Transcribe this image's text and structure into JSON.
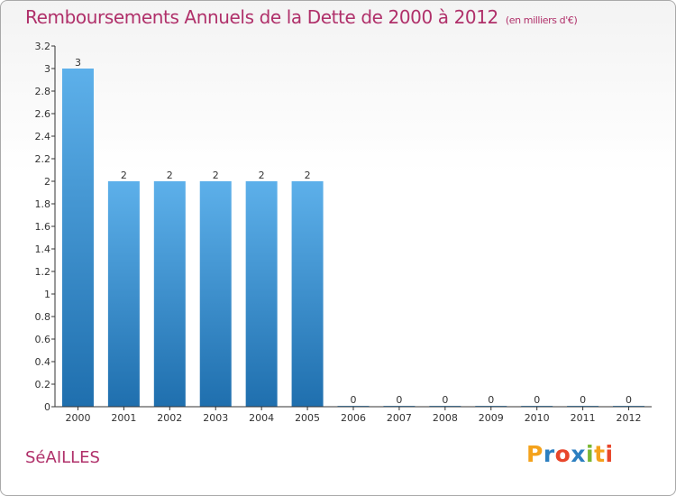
{
  "title": "Remboursements Annuels de la Dette de 2000 à 2012",
  "subtitle": "(en milliers d'€)",
  "commune": "SéAILLES",
  "logo": {
    "letters": [
      "P",
      "r",
      "o",
      "x",
      "i",
      "t",
      "i"
    ],
    "colors": [
      "#f4a21b",
      "#2c7fc0",
      "#e8462b",
      "#2c7fc0",
      "#7ab733",
      "#f4a21b",
      "#e8462b"
    ]
  },
  "colors": {
    "title": "#b0306a",
    "bar_top": "#5db0ea",
    "bar_bottom": "#1f6fae",
    "axis": "#333333"
  },
  "chart_data": {
    "type": "bar",
    "title": "Remboursements Annuels de la Dette de 2000 à 2012",
    "subtitle": "(en milliers d'€)",
    "xlabel": "",
    "ylabel": "",
    "categories": [
      "2000",
      "2001",
      "2002",
      "2003",
      "2004",
      "2005",
      "2006",
      "2007",
      "2008",
      "2009",
      "2010",
      "2011",
      "2012"
    ],
    "values": [
      3,
      2,
      2,
      2,
      2,
      2,
      0,
      0,
      0,
      0,
      0,
      0,
      0
    ],
    "value_labels": [
      "3",
      "2",
      "2",
      "2",
      "2",
      "2",
      "0",
      "0",
      "0",
      "0",
      "0",
      "0",
      "0"
    ],
    "ylim": [
      0,
      3.2
    ],
    "yticks": [
      0,
      0.2,
      0.4,
      0.6,
      0.8,
      1,
      1.2,
      1.4,
      1.6,
      1.8,
      2,
      2.2,
      2.4,
      2.6,
      2.8,
      3,
      3.2
    ],
    "ytick_labels": [
      "0",
      "0.2",
      "0.4",
      "0.6",
      "0.8",
      "1",
      "1.2",
      "1.4",
      "1.6",
      "1.8",
      "2",
      "2.2",
      "2.4",
      "2.6",
      "2.8",
      "3",
      "3.2"
    ],
    "grid": false,
    "legend": "none"
  }
}
